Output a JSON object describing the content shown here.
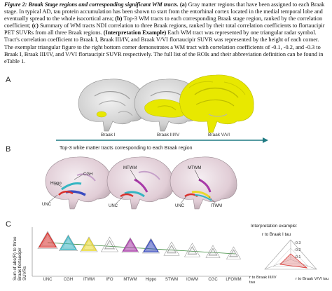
{
  "caption": {
    "figure_label": "Figure 2:",
    "title": "Braak Stage regions and corresponding significant WM tracts.",
    "part_a": "(a)",
    "text_a": "Gray matter regions that have been assigned to each Braak stage. In typical AD, tau protein accumulation has been shown to start from the entorhinal cortex located in the medial temporal lobe and eventually spread to the whole isocortical area;",
    "part_b": "(b)",
    "text_b": "Top-3 WM tracts to each corresponding Braak stage region, ranked by the correlation coefficient;",
    "part_c": "(c)",
    "text_c": "Summary of WM tracts NDI correlation to three Braak regions, ranked by their total correlation coefficients to flortaucipir PET SUVRs from all three Braak regions.",
    "interp_label": "(Interpretation Example)",
    "text_d": "Each WM tract was represented by one triangular radar symbol. Tract's correlation coefficient to Braak I, Braak III/IV, and Braak V/VI flortaucipir SUVR was represented by the height of each corner. The exemplar triangular figure to the right bottom corner demonstrates a WM tract with correlation coefficients of -0.1, -0.2, and -0.3 to Braak I, Braak III/IV, and V/VI flortaucipir SUVR respectively. The full list of the ROIs and their abbreviation definition can be found in eTable 1."
  },
  "panel_a": {
    "letter": "A",
    "brains": [
      {
        "label": "Braak I"
      },
      {
        "label": "Braak III/IV"
      },
      {
        "label": "Braak V/VI"
      }
    ],
    "highlight_color": "#e8e800"
  },
  "panel_b": {
    "letter": "B",
    "heading": "Top-3 white matter tracts corresponding to each Braak region",
    "brains": [
      {
        "labels": [
          "CGH",
          "Hippo",
          "UNC"
        ]
      },
      {
        "labels": [
          "MTWM",
          "UNC"
        ]
      },
      {
        "labels": [
          "MTWM",
          "ITWM",
          "UNC"
        ]
      }
    ]
  },
  "panel_c": {
    "letter": "C",
    "ylabel": "Sum of abs(R) to three Braak flortaucipir SUVRs",
    "tracts": [
      {
        "name": "UNC",
        "color": "#d9302c"
      },
      {
        "name": "CGH",
        "color": "#35b5c2"
      },
      {
        "name": "ITWM",
        "color": "#e9d82a"
      },
      {
        "name": "IFO",
        "color": "#b0b0b0"
      },
      {
        "name": "MTWM",
        "color": "#a83aa8"
      },
      {
        "name": "Hippo",
        "color": "#3a4cc0"
      },
      {
        "name": "STWM",
        "color": "#b0b0b0"
      },
      {
        "name": "IOWM",
        "color": "#b0b0b0"
      },
      {
        "name": "CGC",
        "color": "#b0b0b0"
      },
      {
        "name": "LFOWM",
        "color": "#b0b0b0"
      }
    ],
    "interpretation": {
      "title": "Interpretation example:",
      "top_label": "r to Braak I tau",
      "left_label": "r to Braak III/IV tau",
      "right_label": "r to Braak V/VI tau",
      "ticks": [
        "-0.3",
        "-0.2",
        "-0.1"
      ]
    }
  }
}
